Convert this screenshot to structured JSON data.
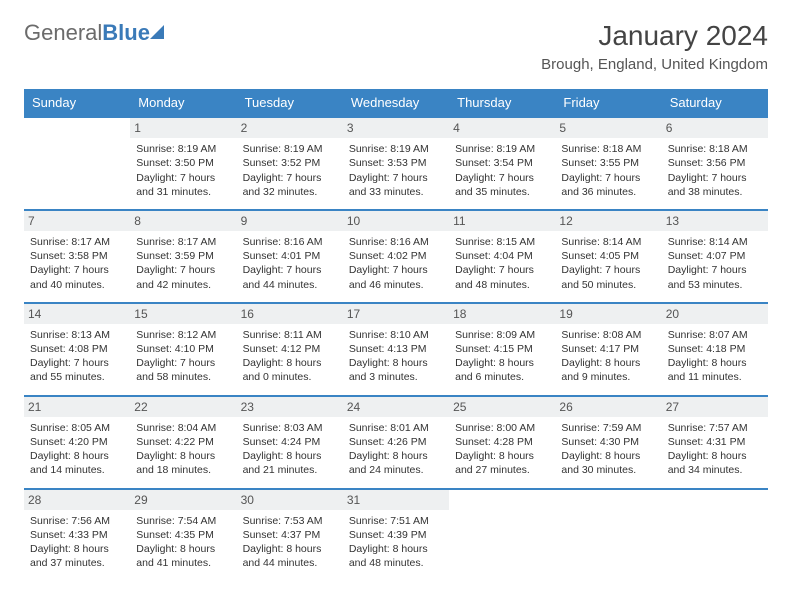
{
  "logo": {
    "word1": "General",
    "word2": "Blue"
  },
  "title": "January 2024",
  "location": "Brough, England, United Kingdom",
  "colors": {
    "header_bg": "#3a84c4",
    "header_text": "#ffffff",
    "border": "#3a84c4",
    "daynum_bg": "#eef0f1",
    "text": "#333333"
  },
  "daysOfWeek": [
    "Sunday",
    "Monday",
    "Tuesday",
    "Wednesday",
    "Thursday",
    "Friday",
    "Saturday"
  ],
  "cells": [
    {
      "day": "",
      "sunrise": "",
      "sunset": "",
      "daylight": ""
    },
    {
      "day": "1",
      "sunrise": "Sunrise: 8:19 AM",
      "sunset": "Sunset: 3:50 PM",
      "daylight": "Daylight: 7 hours and 31 minutes."
    },
    {
      "day": "2",
      "sunrise": "Sunrise: 8:19 AM",
      "sunset": "Sunset: 3:52 PM",
      "daylight": "Daylight: 7 hours and 32 minutes."
    },
    {
      "day": "3",
      "sunrise": "Sunrise: 8:19 AM",
      "sunset": "Sunset: 3:53 PM",
      "daylight": "Daylight: 7 hours and 33 minutes."
    },
    {
      "day": "4",
      "sunrise": "Sunrise: 8:19 AM",
      "sunset": "Sunset: 3:54 PM",
      "daylight": "Daylight: 7 hours and 35 minutes."
    },
    {
      "day": "5",
      "sunrise": "Sunrise: 8:18 AM",
      "sunset": "Sunset: 3:55 PM",
      "daylight": "Daylight: 7 hours and 36 minutes."
    },
    {
      "day": "6",
      "sunrise": "Sunrise: 8:18 AM",
      "sunset": "Sunset: 3:56 PM",
      "daylight": "Daylight: 7 hours and 38 minutes."
    },
    {
      "day": "7",
      "sunrise": "Sunrise: 8:17 AM",
      "sunset": "Sunset: 3:58 PM",
      "daylight": "Daylight: 7 hours and 40 minutes."
    },
    {
      "day": "8",
      "sunrise": "Sunrise: 8:17 AM",
      "sunset": "Sunset: 3:59 PM",
      "daylight": "Daylight: 7 hours and 42 minutes."
    },
    {
      "day": "9",
      "sunrise": "Sunrise: 8:16 AM",
      "sunset": "Sunset: 4:01 PM",
      "daylight": "Daylight: 7 hours and 44 minutes."
    },
    {
      "day": "10",
      "sunrise": "Sunrise: 8:16 AM",
      "sunset": "Sunset: 4:02 PM",
      "daylight": "Daylight: 7 hours and 46 minutes."
    },
    {
      "day": "11",
      "sunrise": "Sunrise: 8:15 AM",
      "sunset": "Sunset: 4:04 PM",
      "daylight": "Daylight: 7 hours and 48 minutes."
    },
    {
      "day": "12",
      "sunrise": "Sunrise: 8:14 AM",
      "sunset": "Sunset: 4:05 PM",
      "daylight": "Daylight: 7 hours and 50 minutes."
    },
    {
      "day": "13",
      "sunrise": "Sunrise: 8:14 AM",
      "sunset": "Sunset: 4:07 PM",
      "daylight": "Daylight: 7 hours and 53 minutes."
    },
    {
      "day": "14",
      "sunrise": "Sunrise: 8:13 AM",
      "sunset": "Sunset: 4:08 PM",
      "daylight": "Daylight: 7 hours and 55 minutes."
    },
    {
      "day": "15",
      "sunrise": "Sunrise: 8:12 AM",
      "sunset": "Sunset: 4:10 PM",
      "daylight": "Daylight: 7 hours and 58 minutes."
    },
    {
      "day": "16",
      "sunrise": "Sunrise: 8:11 AM",
      "sunset": "Sunset: 4:12 PM",
      "daylight": "Daylight: 8 hours and 0 minutes."
    },
    {
      "day": "17",
      "sunrise": "Sunrise: 8:10 AM",
      "sunset": "Sunset: 4:13 PM",
      "daylight": "Daylight: 8 hours and 3 minutes."
    },
    {
      "day": "18",
      "sunrise": "Sunrise: 8:09 AM",
      "sunset": "Sunset: 4:15 PM",
      "daylight": "Daylight: 8 hours and 6 minutes."
    },
    {
      "day": "19",
      "sunrise": "Sunrise: 8:08 AM",
      "sunset": "Sunset: 4:17 PM",
      "daylight": "Daylight: 8 hours and 9 minutes."
    },
    {
      "day": "20",
      "sunrise": "Sunrise: 8:07 AM",
      "sunset": "Sunset: 4:18 PM",
      "daylight": "Daylight: 8 hours and 11 minutes."
    },
    {
      "day": "21",
      "sunrise": "Sunrise: 8:05 AM",
      "sunset": "Sunset: 4:20 PM",
      "daylight": "Daylight: 8 hours and 14 minutes."
    },
    {
      "day": "22",
      "sunrise": "Sunrise: 8:04 AM",
      "sunset": "Sunset: 4:22 PM",
      "daylight": "Daylight: 8 hours and 18 minutes."
    },
    {
      "day": "23",
      "sunrise": "Sunrise: 8:03 AM",
      "sunset": "Sunset: 4:24 PM",
      "daylight": "Daylight: 8 hours and 21 minutes."
    },
    {
      "day": "24",
      "sunrise": "Sunrise: 8:01 AM",
      "sunset": "Sunset: 4:26 PM",
      "daylight": "Daylight: 8 hours and 24 minutes."
    },
    {
      "day": "25",
      "sunrise": "Sunrise: 8:00 AM",
      "sunset": "Sunset: 4:28 PM",
      "daylight": "Daylight: 8 hours and 27 minutes."
    },
    {
      "day": "26",
      "sunrise": "Sunrise: 7:59 AM",
      "sunset": "Sunset: 4:30 PM",
      "daylight": "Daylight: 8 hours and 30 minutes."
    },
    {
      "day": "27",
      "sunrise": "Sunrise: 7:57 AM",
      "sunset": "Sunset: 4:31 PM",
      "daylight": "Daylight: 8 hours and 34 minutes."
    },
    {
      "day": "28",
      "sunrise": "Sunrise: 7:56 AM",
      "sunset": "Sunset: 4:33 PM",
      "daylight": "Daylight: 8 hours and 37 minutes."
    },
    {
      "day": "29",
      "sunrise": "Sunrise: 7:54 AM",
      "sunset": "Sunset: 4:35 PM",
      "daylight": "Daylight: 8 hours and 41 minutes."
    },
    {
      "day": "30",
      "sunrise": "Sunrise: 7:53 AM",
      "sunset": "Sunset: 4:37 PM",
      "daylight": "Daylight: 8 hours and 44 minutes."
    },
    {
      "day": "31",
      "sunrise": "Sunrise: 7:51 AM",
      "sunset": "Sunset: 4:39 PM",
      "daylight": "Daylight: 8 hours and 48 minutes."
    },
    {
      "day": "",
      "sunrise": "",
      "sunset": "",
      "daylight": ""
    },
    {
      "day": "",
      "sunrise": "",
      "sunset": "",
      "daylight": ""
    },
    {
      "day": "",
      "sunrise": "",
      "sunset": "",
      "daylight": ""
    }
  ]
}
